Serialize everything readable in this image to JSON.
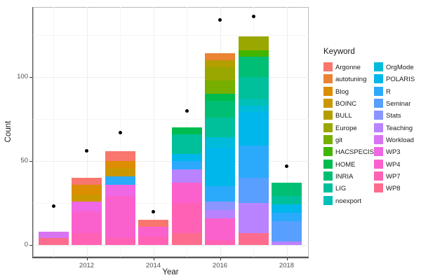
{
  "figure": {
    "background": "#FFFFFF",
    "panel_border_color": "#B9B9B9",
    "grid_major_color": "#EDEDED",
    "grid_minor_color": "#F6F6F6",
    "point_color": "#000000"
  },
  "axes": {
    "x": {
      "label": "Year",
      "tick_labels": [
        "2012",
        "2014",
        "2016",
        "2018"
      ],
      "major_ticks": [
        2012,
        2014,
        2016,
        2018
      ],
      "minor_ticks": [
        2011,
        2013,
        2015,
        2017
      ]
    },
    "y": {
      "label": "Count",
      "tick_labels": [
        "0",
        "50",
        "100"
      ],
      "major_ticks": [
        0,
        50,
        100
      ],
      "minor_ticks": [
        25,
        75,
        125
      ]
    }
  },
  "legend": {
    "title": "Keyword",
    "column1": [
      "Argonne",
      "autotuning",
      "Blog",
      "BOINC",
      "BULL",
      "Europe",
      "git",
      "HACSPECIS",
      "HOME",
      "INRIA",
      "LIG",
      "noexport"
    ],
    "column2": [
      "OrgMode",
      "POLARIS",
      "R",
      "Seminar",
      "Stats",
      "Teaching",
      "Workload",
      "WP3",
      "WP4",
      "WP7",
      "WP8"
    ]
  },
  "chart_data": {
    "type": "bar",
    "stacked": true,
    "stack_order": "reverse-of-series-list-bottom-up",
    "title": "",
    "xlabel": "Year",
    "ylabel": "Count",
    "categories": [
      2011,
      2012,
      2013,
      2014,
      2015,
      2016,
      2017,
      2018
    ],
    "ylim": [
      0,
      140
    ],
    "grid": true,
    "legend_position": "right",
    "series": [
      {
        "name": "Argonne",
        "color": "#F8766D",
        "values": [
          0,
          4,
          6,
          4,
          0,
          0,
          0,
          0
        ]
      },
      {
        "name": "autotuning",
        "color": "#EB8335",
        "values": [
          0,
          0,
          0,
          0,
          0,
          4,
          0,
          0
        ]
      },
      {
        "name": "Blog",
        "color": "#DC8D00",
        "values": [
          0,
          6,
          4,
          0,
          0,
          0,
          0,
          0
        ]
      },
      {
        "name": "BOINC",
        "color": "#CB9700",
        "values": [
          0,
          4,
          5,
          0,
          0,
          0,
          0,
          0
        ]
      },
      {
        "name": "BULL",
        "color": "#B49F00",
        "values": [
          0,
          0,
          0,
          0,
          0,
          4,
          0,
          0
        ]
      },
      {
        "name": "Europe",
        "color": "#9AA700",
        "values": [
          0,
          0,
          0,
          0,
          0,
          8,
          8,
          0
        ]
      },
      {
        "name": "git",
        "color": "#76AF00",
        "values": [
          0,
          0,
          0,
          0,
          0,
          8,
          0,
          0
        ]
      },
      {
        "name": "HACSPECIS",
        "color": "#41B500",
        "values": [
          0,
          0,
          0,
          0,
          0,
          0,
          4,
          0
        ]
      },
      {
        "name": "HOME",
        "color": "#00BB4E",
        "values": [
          0,
          0,
          0,
          0,
          4,
          4,
          0,
          0
        ]
      },
      {
        "name": "INRIA",
        "color": "#00BF74",
        "values": [
          0,
          0,
          0,
          0,
          0,
          10,
          12,
          8
        ]
      },
      {
        "name": "LIG",
        "color": "#00C09B",
        "values": [
          0,
          0,
          0,
          0,
          12,
          12,
          13,
          5
        ]
      },
      {
        "name": "noexport",
        "color": "#00BFB7",
        "values": [
          0,
          0,
          0,
          0,
          0,
          0,
          4,
          0
        ]
      },
      {
        "name": "OrgMode",
        "color": "#00BCDA",
        "values": [
          0,
          0,
          0,
          0,
          0,
          6,
          4,
          0
        ]
      },
      {
        "name": "POLARIS",
        "color": "#00B7EC",
        "values": [
          0,
          0,
          0,
          0,
          4,
          23,
          20,
          5
        ]
      },
      {
        "name": "R",
        "color": "#2BAAFC",
        "values": [
          0,
          0,
          5,
          0,
          5,
          9,
          19,
          5
        ]
      },
      {
        "name": "Seminar",
        "color": "#589FFF",
        "values": [
          0,
          0,
          0,
          0,
          0,
          0,
          15,
          12
        ]
      },
      {
        "name": "Stats",
        "color": "#8A95FF",
        "values": [
          0,
          0,
          0,
          0,
          0,
          5,
          0,
          0
        ]
      },
      {
        "name": "Teaching",
        "color": "#B983FF",
        "values": [
          0,
          0,
          0,
          0,
          8,
          5,
          18,
          2
        ]
      },
      {
        "name": "Workload",
        "color": "#D874F2",
        "values": [
          4,
          0,
          0,
          0,
          0,
          0,
          0,
          0
        ]
      },
      {
        "name": "WP3",
        "color": "#EF67E4",
        "values": [
          0,
          6,
          7,
          0,
          0,
          0,
          0,
          0
        ]
      },
      {
        "name": "WP4",
        "color": "#FB61CD",
        "values": [
          0,
          13,
          25,
          6,
          12,
          13,
          0,
          0
        ]
      },
      {
        "name": "WP7",
        "color": "#FF62B4",
        "values": [
          0,
          7,
          4,
          5,
          18,
          3,
          0,
          0
        ]
      },
      {
        "name": "WP8",
        "color": "#FD6C8E",
        "values": [
          4,
          0,
          0,
          0,
          7,
          0,
          7,
          0
        ]
      }
    ],
    "bar_totals": [
      8,
      40,
      56,
      15,
      70,
      114,
      124,
      37
    ],
    "points": {
      "name": "yearly-total-dots",
      "marker": "point",
      "color": "#000000",
      "x": [
        2011,
        2012,
        2013,
        2014,
        2015,
        2016,
        2017,
        2018
      ],
      "y": [
        23,
        56,
        67,
        20,
        80,
        134,
        136,
        47
      ]
    }
  }
}
